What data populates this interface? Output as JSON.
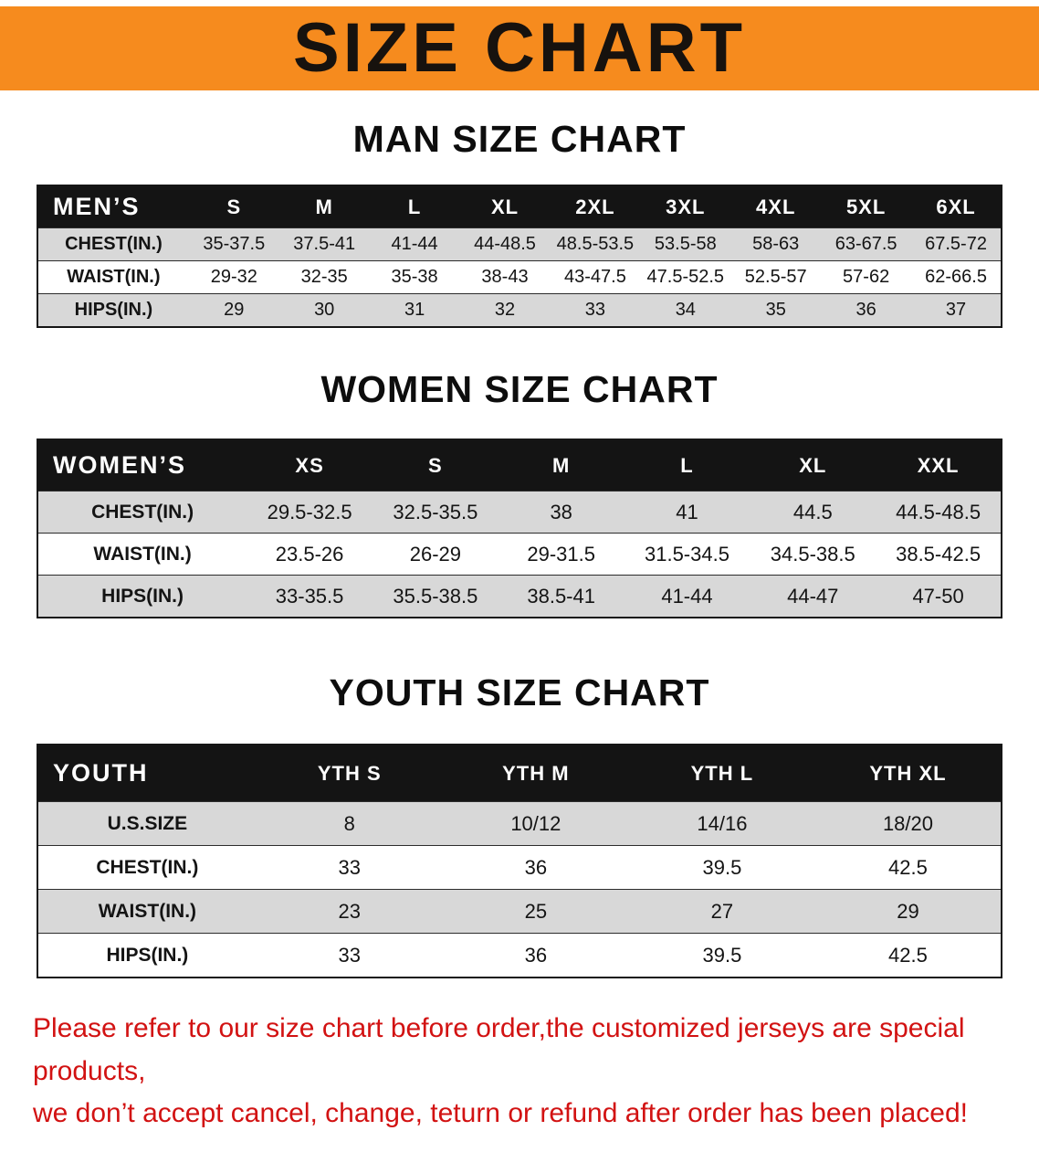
{
  "banner": {
    "title": "SIZE CHART"
  },
  "colors": {
    "banner_bg": "#f68b1e",
    "table_header_bg": "#141414",
    "row_stripe": "#d8d8d8",
    "disclaimer_text": "#d21212"
  },
  "chart_data": [
    {
      "type": "table",
      "title": "MAN SIZE CHART",
      "columns": [
        "MEN’S",
        "S",
        "M",
        "L",
        "XL",
        "2XL",
        "3XL",
        "4XL",
        "5XL",
        "6XL"
      ],
      "rows": [
        [
          "CHEST(IN.)",
          "35-37.5",
          "37.5-41",
          "41-44",
          "44-48.5",
          "48.5-53.5",
          "53.5-58",
          "58-63",
          "63-67.5",
          "67.5-72"
        ],
        [
          "WAIST(IN.)",
          "29-32",
          "32-35",
          "35-38",
          "38-43",
          "43-47.5",
          "47.5-52.5",
          "52.5-57",
          "57-62",
          "62-66.5"
        ],
        [
          "HIPS(IN.)",
          "29",
          "30",
          "31",
          "32",
          "33",
          "34",
          "35",
          "36",
          "37"
        ]
      ]
    },
    {
      "type": "table",
      "title": "WOMEN SIZE CHART",
      "columns": [
        "WOMEN’S",
        "XS",
        "S",
        "M",
        "L",
        "XL",
        "XXL"
      ],
      "rows": [
        [
          "CHEST(IN.)",
          "29.5-32.5",
          "32.5-35.5",
          "38",
          "41",
          "44.5",
          "44.5-48.5"
        ],
        [
          "WAIST(IN.)",
          "23.5-26",
          "26-29",
          "29-31.5",
          "31.5-34.5",
          "34.5-38.5",
          "38.5-42.5"
        ],
        [
          "HIPS(IN.)",
          "33-35.5",
          "35.5-38.5",
          "38.5-41",
          "41-44",
          "44-47",
          "47-50"
        ]
      ]
    },
    {
      "type": "table",
      "title": "YOUTH SIZE CHART",
      "columns": [
        "YOUTH",
        "YTH S",
        "YTH M",
        "YTH L",
        "YTH XL"
      ],
      "rows": [
        [
          "U.S.SIZE",
          "8",
          "10/12",
          "14/16",
          "18/20"
        ],
        [
          "CHEST(IN.)",
          "33",
          "36",
          "39.5",
          "42.5"
        ],
        [
          "WAIST(IN.)",
          "23",
          "25",
          "27",
          "29"
        ],
        [
          "HIPS(IN.)",
          "33",
          "36",
          "39.5",
          "42.5"
        ]
      ]
    }
  ],
  "disclaimer": {
    "line1": "Please refer to our size chart before order,the customized jerseys are special products,",
    "line2": "we don’t accept cancel, change, teturn or refund after order has been placed!"
  }
}
